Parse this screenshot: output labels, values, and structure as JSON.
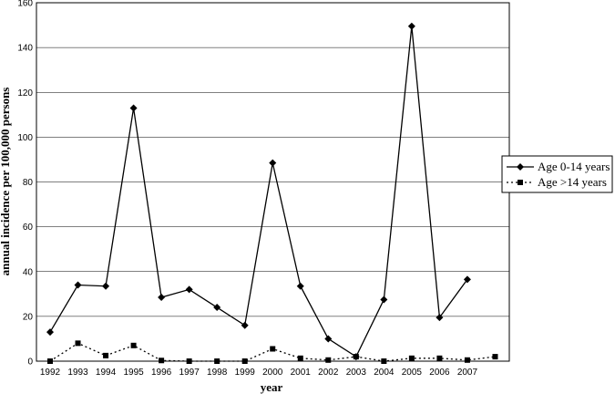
{
  "chart_data": {
    "type": "line",
    "xlabel": "year",
    "ylabel": "annual incidence per 100,000 persons",
    "x": [
      "1992",
      "1993",
      "1994",
      "1995",
      "1996",
      "1997",
      "1998",
      "1999",
      "2000",
      "2001",
      "2002",
      "2003",
      "2004",
      "2005",
      "2006",
      "2007",
      ""
    ],
    "ylim": [
      0,
      160
    ],
    "yticks": [
      0,
      20,
      40,
      60,
      80,
      100,
      120,
      140,
      160
    ],
    "grid": true,
    "legend_position": "right",
    "series": [
      {
        "name": "Age 0-14 years",
        "style": "solid",
        "marker": "diamond",
        "values": [
          13,
          34,
          33.5,
          113,
          28.5,
          32,
          24,
          16,
          88.5,
          33.5,
          10,
          2,
          27.5,
          149.5,
          19.5,
          36.5,
          null
        ]
      },
      {
        "name": "Age >14 years",
        "style": "dotted",
        "marker": "square",
        "values": [
          0,
          8,
          2.5,
          7,
          0.3,
          0,
          0,
          0,
          5.5,
          1.3,
          0.5,
          2,
          0,
          1.3,
          1.3,
          0.5,
          2
        ]
      }
    ]
  }
}
